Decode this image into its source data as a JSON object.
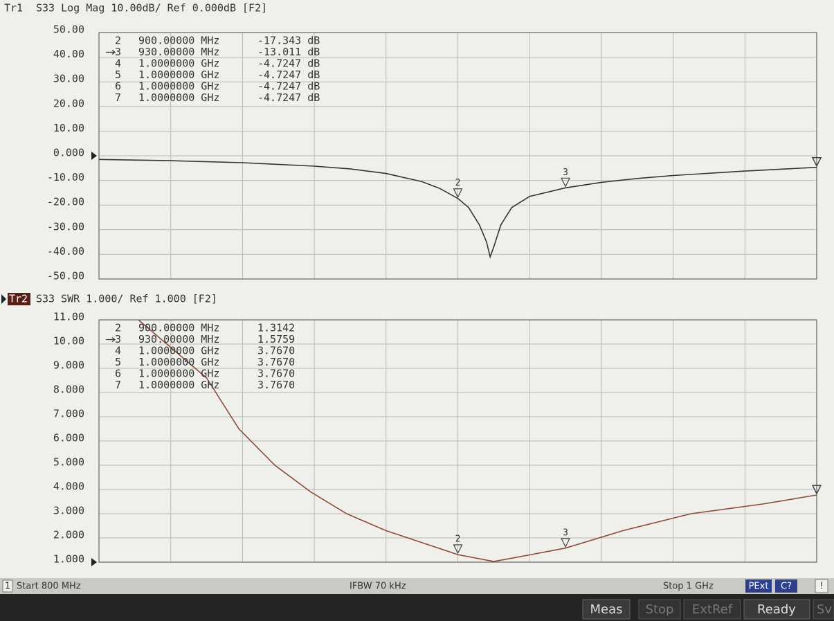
{
  "chart_data": [
    {
      "type": "line",
      "trace": "Tr1",
      "title": "S33 Log Mag 10.00dB/ Ref 0.000dB [F2]",
      "x": [
        800,
        820,
        840,
        860,
        870,
        880,
        890,
        895,
        900,
        903,
        906,
        908,
        909,
        910,
        912,
        915,
        920,
        930,
        940,
        950,
        960,
        980,
        1000
      ],
      "series": [
        {
          "color": "#333333",
          "values": [
            -1.5,
            -2.0,
            -2.8,
            -4.2,
            -5.3,
            -7.2,
            -10.5,
            -13.3,
            -17.3,
            -21,
            -28,
            -35,
            -41,
            -37,
            -28,
            -21,
            -16.5,
            -13.0,
            -10.8,
            -9.2,
            -8.0,
            -6.2,
            -4.7
          ]
        }
      ],
      "xlim": [
        800,
        1000
      ],
      "xticks": [
        800,
        820,
        840,
        860,
        880,
        900,
        920,
        940,
        960,
        980,
        1000
      ],
      "ylim": [
        -50,
        50
      ],
      "yticks": [
        {
          "value": 50,
          "label": "50.00"
        },
        {
          "value": 40,
          "label": "40.00"
        },
        {
          "value": 30,
          "label": "30.00"
        },
        {
          "value": 20,
          "label": "20.00"
        },
        {
          "value": 10,
          "label": "10.00"
        },
        {
          "value": 0,
          "label": "0.000"
        },
        {
          "value": -10,
          "label": "-10.00"
        },
        {
          "value": -20,
          "label": "-20.00"
        },
        {
          "value": -30,
          "label": "-30.00"
        },
        {
          "value": -40,
          "label": "-40.00"
        },
        {
          "value": -50,
          "label": "-50.00"
        }
      ],
      "grid": true,
      "markers": [
        {
          "id": "2",
          "x": {
            "value": 900,
            "label": "900.00000 MHz"
          },
          "y": {
            "value": -17.343,
            "label": "-17.343 dB"
          }
        },
        {
          "id": "3",
          "active": true,
          "x": {
            "value": 930,
            "label": "930.00000 MHz"
          },
          "y": {
            "value": -13.011,
            "label": "-13.011 dB"
          }
        },
        {
          "id": "4",
          "x": {
            "value": 1000,
            "label": "1.0000000 GHz"
          },
          "y": {
            "value": -4.7247,
            "label": "-4.7247 dB"
          }
        },
        {
          "id": "5",
          "x": {
            "value": 1000,
            "label": "1.0000000 GHz"
          },
          "y": {
            "value": -4.7247,
            "label": "-4.7247 dB"
          }
        },
        {
          "id": "6",
          "x": {
            "value": 1000,
            "label": "1.0000000 GHz"
          },
          "y": {
            "value": -4.7247,
            "label": "-4.7247 dB"
          }
        },
        {
          "id": "7",
          "x": {
            "value": 1000,
            "label": "1.0000000 GHz"
          },
          "y": {
            "value": -4.7247,
            "label": "-4.7247 dB"
          }
        }
      ]
    },
    {
      "type": "line",
      "trace": "Tr2",
      "title": "S33 SWR 1.000/ Ref 1.000 [F2]",
      "x": [
        811,
        830,
        839,
        849,
        859,
        869,
        880,
        900,
        910,
        920,
        930,
        946,
        965,
        985,
        1000
      ],
      "series": [
        {
          "color": "#8b4a3a",
          "values": [
            11.0,
            8.6,
            6.5,
            5.0,
            3.9,
            3.0,
            2.3,
            1.31,
            1.03,
            1.3,
            1.58,
            2.3,
            3.0,
            3.4,
            3.77
          ]
        }
      ],
      "xlim": [
        800,
        1000
      ],
      "xticks": [
        800,
        820,
        840,
        860,
        880,
        900,
        920,
        940,
        960,
        980,
        1000
      ],
      "ylim": [
        1,
        11
      ],
      "yticks": [
        {
          "value": 11,
          "label": "11.00"
        },
        {
          "value": 10,
          "label": "10.00"
        },
        {
          "value": 9,
          "label": "9.000"
        },
        {
          "value": 8,
          "label": "8.000"
        },
        {
          "value": 7,
          "label": "7.000"
        },
        {
          "value": 6,
          "label": "6.000"
        },
        {
          "value": 5,
          "label": "5.000"
        },
        {
          "value": 4,
          "label": "4.000"
        },
        {
          "value": 3,
          "label": "3.000"
        },
        {
          "value": 2,
          "label": "2.000"
        },
        {
          "value": 1,
          "label": "1.000"
        }
      ],
      "grid": true,
      "markers": [
        {
          "id": "2",
          "x": {
            "value": 900,
            "label": "900.00000 MHz"
          },
          "y": {
            "value": 1.3142,
            "label": "1.3142"
          }
        },
        {
          "id": "3",
          "active": true,
          "x": {
            "value": 930,
            "label": "930.00000 MHz"
          },
          "y": {
            "value": 1.5759,
            "label": "1.5759"
          }
        },
        {
          "id": "4",
          "x": {
            "value": 1000,
            "label": "1.0000000 GHz"
          },
          "y": {
            "value": 3.767,
            "label": "3.7670"
          }
        },
        {
          "id": "5",
          "x": {
            "value": 1000,
            "label": "1.0000000 GHz"
          },
          "y": {
            "value": 3.767,
            "label": "3.7670"
          }
        },
        {
          "id": "6",
          "x": {
            "value": 1000,
            "label": "1.0000000 GHz"
          },
          "y": {
            "value": 3.767,
            "label": "3.7670"
          }
        },
        {
          "id": "7",
          "x": {
            "value": 1000,
            "label": "1.0000000 GHz"
          },
          "y": {
            "value": 3.767,
            "label": "3.7670"
          }
        }
      ]
    }
  ],
  "status_bar": {
    "channel": "1",
    "start": "Start 800 MHz",
    "ifbw": "IFBW 70 kHz",
    "stop": "Stop 1 GHz",
    "flags": [
      "PExt",
      "C?",
      "!"
    ]
  },
  "soft_keys": [
    "Meas",
    "Stop",
    "ExtRef",
    "Ready",
    "Sv"
  ]
}
